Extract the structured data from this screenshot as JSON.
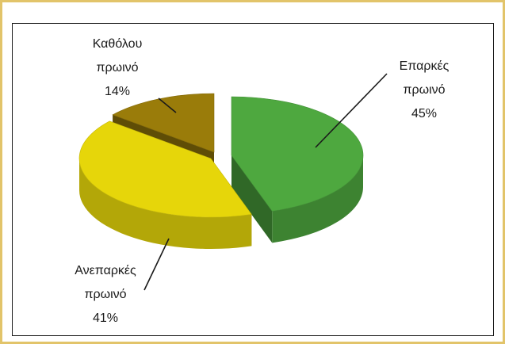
{
  "chart_data": {
    "type": "pie",
    "slices": [
      {
        "label_line1": "Επαρκές",
        "label_line2": "πρωινό",
        "pct_label": "45%",
        "value": 45,
        "color": "#4ea83f"
      },
      {
        "label_line1": "Ανεπαρκές",
        "label_line2": "πρωινό",
        "pct_label": "41%",
        "value": 41,
        "color": "#e6d60a"
      },
      {
        "label_line1": "Καθόλου",
        "label_line2": "πρωινό",
        "pct_label": "14%",
        "value": 14,
        "color": "#9a7c0a"
      }
    ]
  }
}
